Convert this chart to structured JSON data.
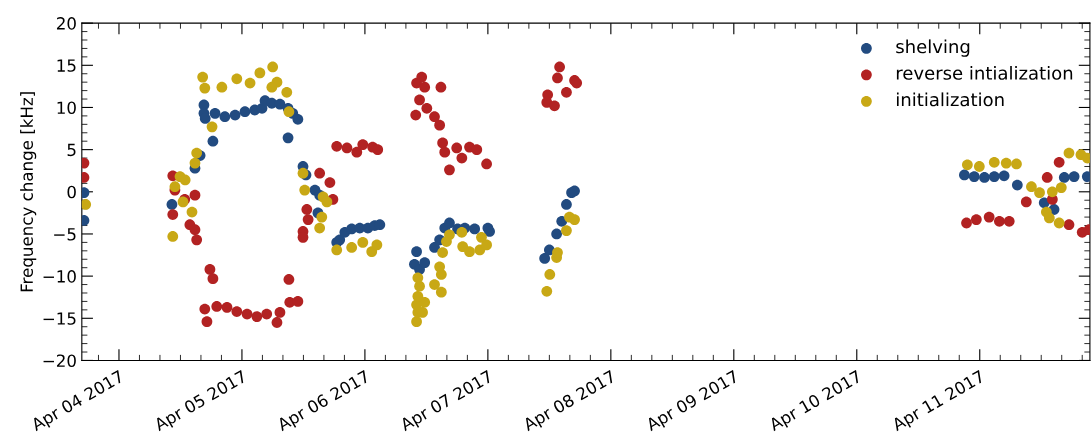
{
  "chart_data": {
    "type": "scatter",
    "ylabel": "Frequency change [kHz]",
    "xlim": [
      "2017-04-03T16:45",
      "2017-04-11T21:30"
    ],
    "ylim": [
      -20,
      20
    ],
    "yticks": [
      -20,
      -15,
      -10,
      -5,
      0,
      5,
      10,
      15,
      20
    ],
    "xticks": [
      {
        "value": "2017-04-04",
        "label": "Apr 04 2017"
      },
      {
        "value": "2017-04-05",
        "label": "Apr 05 2017"
      },
      {
        "value": "2017-04-06",
        "label": "Apr 06 2017"
      },
      {
        "value": "2017-04-07",
        "label": "Apr 07 2017"
      },
      {
        "value": "2017-04-08",
        "label": "Apr 08 2017"
      },
      {
        "value": "2017-04-09",
        "label": "Apr 09 2017"
      },
      {
        "value": "2017-04-10",
        "label": "Apr 10 2017"
      },
      {
        "value": "2017-04-11",
        "label": "Apr 11 2017"
      }
    ],
    "legend": "top right",
    "marker": "circle",
    "grid": false,
    "series": [
      {
        "name": "shelving",
        "color": "#224b80",
        "x": [
          "2017-04-03T17:10",
          "2017-04-03T17:10",
          "2017-04-04T10:20",
          "2017-04-04T14:50",
          "2017-04-04T15:50",
          "2017-04-04T18:20",
          "2017-04-04T16:35",
          "2017-04-04T16:35",
          "2017-04-04T16:50",
          "2017-04-04T18:45",
          "2017-04-04T20:40",
          "2017-04-04T22:40",
          "2017-04-05T00:35",
          "2017-04-05T02:30",
          "2017-04-05T03:55",
          "2017-04-05T04:30",
          "2017-04-05T05:50",
          "2017-04-05T07:25",
          "2017-04-05T09:00",
          "2017-04-05T09:55",
          "2017-04-05T10:55",
          "2017-04-05T09:00",
          "2017-04-05T11:55",
          "2017-04-05T12:30",
          "2017-04-05T14:15",
          "2017-04-05T15:10",
          "2017-04-05T14:50",
          "2017-04-05T18:30",
          "2017-04-05T19:05",
          "2017-04-05T20:05",
          "2017-04-05T21:25",
          "2017-04-05T23:00",
          "2017-04-06T00:35",
          "2017-04-06T01:55",
          "2017-04-06T02:55",
          "2017-04-06T10:05",
          "2017-04-06T09:40",
          "2017-04-06T10:40",
          "2017-04-06T11:40",
          "2017-04-06T13:35",
          "2017-04-06T14:35",
          "2017-04-06T15:35",
          "2017-04-06T16:30",
          "2017-04-06T18:05",
          "2017-04-06T19:30",
          "2017-04-06T21:25",
          "2017-04-07T00:00",
          "2017-04-07T00:20",
          "2017-04-07T11:05",
          "2017-04-07T12:00",
          "2017-04-07T13:25",
          "2017-04-07T14:25",
          "2017-04-07T15:20",
          "2017-04-07T16:20",
          "2017-04-07T16:55",
          "2017-04-10T21:00",
          "2017-04-10T22:55",
          "2017-04-11T00:55",
          "2017-04-11T02:50",
          "2017-04-11T04:45",
          "2017-04-11T07:20",
          "2017-04-11T12:35",
          "2017-04-11T14:30",
          "2017-04-11T16:30",
          "2017-04-11T18:25",
          "2017-04-11T21:00"
        ],
        "values": [
          -0.1,
          -3.4,
          -1.5,
          2.8,
          4.3,
          6.0,
          10.3,
          9.3,
          8.7,
          9.3,
          8.9,
          9.1,
          9.5,
          9.7,
          9.9,
          10.8,
          10.5,
          10.4,
          9.9,
          9.3,
          8.6,
          6.4,
          3.0,
          2.0,
          0.2,
          -0.4,
          -2.5,
          -6.0,
          -5.7,
          -4.8,
          -4.4,
          -4.3,
          -4.3,
          -4.0,
          -3.9,
          -7.1,
          -8.6,
          -9.2,
          -8.4,
          -6.6,
          -5.7,
          -4.3,
          -3.7,
          -4.4,
          -4.3,
          -4.4,
          -4.3,
          -4.7,
          -7.9,
          -6.9,
          -5.0,
          -3.5,
          -1.5,
          -0.1,
          0.1,
          2.0,
          1.8,
          1.7,
          1.8,
          1.9,
          0.8,
          -1.3,
          -2.1,
          1.7,
          1.8,
          1.8
        ]
      },
      {
        "name": "reverse intialization",
        "color": "#b22222",
        "x": [
          "2017-04-03T17:10",
          "2017-04-03T17:10",
          "2017-04-04T10:30",
          "2017-04-04T10:55",
          "2017-04-04T10:30",
          "2017-04-04T12:50",
          "2017-04-04T13:50",
          "2017-04-04T14:50",
          "2017-04-04T14:50",
          "2017-04-04T15:10",
          "2017-04-04T17:45",
          "2017-04-04T18:20",
          "2017-04-04T16:45",
          "2017-04-04T17:10",
          "2017-04-04T19:05",
          "2017-04-04T21:05",
          "2017-04-04T23:00",
          "2017-04-05T01:00",
          "2017-04-05T02:55",
          "2017-04-05T04:50",
          "2017-04-05T06:50",
          "2017-04-05T07:25",
          "2017-04-05T09:20",
          "2017-04-05T10:55",
          "2017-04-05T09:10",
          "2017-04-05T11:55",
          "2017-04-05T11:55",
          "2017-04-05T12:40",
          "2017-04-05T12:55",
          "2017-04-05T15:10",
          "2017-04-05T17:10",
          "2017-04-05T17:45",
          "2017-04-05T18:30",
          "2017-04-05T20:30",
          "2017-04-05T22:25",
          "2017-04-05T23:35",
          "2017-04-06T01:30",
          "2017-04-06T02:30",
          "2017-04-06T09:55",
          "2017-04-06T10:05",
          "2017-04-06T10:40",
          "2017-04-06T11:05",
          "2017-04-06T11:40",
          "2017-04-06T12:05",
          "2017-04-06T13:35",
          "2017-04-06T14:35",
          "2017-04-06T14:50",
          "2017-04-06T15:10",
          "2017-04-06T15:35",
          "2017-04-06T16:30",
          "2017-04-06T17:55",
          "2017-04-06T18:55",
          "2017-04-06T20:25",
          "2017-04-06T21:50",
          "2017-04-06T23:45",
          "2017-04-07T14:00",
          "2017-04-07T13:35",
          "2017-04-07T16:55",
          "2017-04-07T17:20",
          "2017-04-07T15:20",
          "2017-04-07T11:40",
          "2017-04-07T11:30",
          "2017-04-07T13:00",
          "2017-04-10T21:25",
          "2017-04-10T23:20",
          "2017-04-11T01:50",
          "2017-04-11T03:50",
          "2017-04-11T05:45",
          "2017-04-11T15:30",
          "2017-04-11T13:10",
          "2017-04-11T09:05",
          "2017-04-11T14:10",
          "2017-04-11T17:25",
          "2017-04-11T20:00",
          "2017-04-11T21:20"
        ],
        "values": [
          3.4,
          1.7,
          1.9,
          0.2,
          -2.7,
          -0.9,
          -3.9,
          -0.4,
          -4.5,
          -5.7,
          -9.2,
          -10.3,
          -13.9,
          -15.4,
          -13.6,
          -13.7,
          -14.2,
          -14.5,
          -14.8,
          -14.5,
          -15.5,
          -14.3,
          -13.1,
          -13.0,
          -10.4,
          -4.7,
          -5.4,
          -2.1,
          -3.3,
          2.2,
          1.1,
          -0.9,
          5.4,
          5.2,
          4.7,
          5.6,
          5.3,
          5.0,
          9.1,
          12.9,
          10.9,
          13.6,
          12.4,
          9.9,
          8.9,
          7.9,
          12.4,
          5.8,
          4.7,
          2.6,
          5.2,
          4.0,
          5.3,
          5.0,
          3.3,
          14.8,
          13.5,
          13.2,
          12.9,
          11.8,
          11.5,
          10.6,
          10.2,
          -3.7,
          -3.3,
          -3.0,
          -3.5,
          -3.5,
          3.5,
          1.7,
          -1.2,
          -0.9,
          -3.9,
          -4.8,
          -4.5
        ]
      },
      {
        "name": "initialization",
        "color": "#c8a815",
        "x": [
          "2017-04-03T17:30",
          "2017-04-04T10:30",
          "2017-04-04T10:55",
          "2017-04-04T11:55",
          "2017-04-04T12:55",
          "2017-04-04T12:30",
          "2017-04-04T14:15",
          "2017-04-04T14:50",
          "2017-04-04T15:10",
          "2017-04-04T18:10",
          "2017-04-04T16:20",
          "2017-04-04T16:45",
          "2017-04-04T20:05",
          "2017-04-04T23:00",
          "2017-04-05T01:35",
          "2017-04-05T03:30",
          "2017-04-05T06:00",
          "2017-04-05T06:50",
          "2017-04-05T05:50",
          "2017-04-05T08:45",
          "2017-04-05T09:10",
          "2017-04-05T11:55",
          "2017-04-05T12:15",
          "2017-04-05T15:50",
          "2017-04-05T16:35",
          "2017-04-05T15:35",
          "2017-04-05T15:10",
          "2017-04-05T18:30",
          "2017-04-05T21:25",
          "2017-04-05T23:35",
          "2017-04-06T01:20",
          "2017-04-06T02:20",
          "2017-04-06T10:05",
          "2017-04-06T10:20",
          "2017-04-06T11:15",
          "2017-04-06T10:05",
          "2017-04-06T11:40",
          "2017-04-06T10:20",
          "2017-04-06T10:40",
          "2017-04-06T10:20",
          "2017-04-06T13:35",
          "2017-04-06T14:55",
          "2017-04-06T14:55",
          "2017-04-06T14:35",
          "2017-04-06T15:10",
          "2017-04-06T15:55",
          "2017-04-06T16:30",
          "2017-04-06T18:55",
          "2017-04-06T19:05",
          "2017-04-06T20:25",
          "2017-04-06T22:25",
          "2017-04-06T22:45",
          "2017-04-06T23:45",
          "2017-04-07T11:30",
          "2017-04-07T12:05",
          "2017-04-07T13:25",
          "2017-04-07T13:35",
          "2017-04-07T15:20",
          "2017-04-07T15:55",
          "2017-04-07T16:55",
          "2017-04-10T21:35",
          "2017-04-10T23:55",
          "2017-04-11T02:50",
          "2017-04-11T05:10",
          "2017-04-11T07:10",
          "2017-04-11T10:05",
          "2017-04-11T11:40",
          "2017-04-11T13:00",
          "2017-04-11T13:35",
          "2017-04-11T14:10",
          "2017-04-11T15:55",
          "2017-04-11T15:30",
          "2017-04-11T17:25",
          "2017-04-11T19:45",
          "2017-04-11T21:00"
        ],
        "values": [
          -1.5,
          -5.3,
          0.6,
          1.8,
          1.4,
          -1.2,
          -2.4,
          3.4,
          4.6,
          7.7,
          13.6,
          12.3,
          12.4,
          13.4,
          12.9,
          14.1,
          14.8,
          13.0,
          12.4,
          11.8,
          9.5,
          2.2,
          0.2,
          -0.6,
          -1.2,
          -3.0,
          -4.3,
          -6.9,
          -6.6,
          -6.0,
          -7.1,
          -6.3,
          -15.4,
          -14.3,
          -14.3,
          -13.4,
          -13.1,
          -12.4,
          -11.2,
          -10.2,
          -11.0,
          -11.9,
          -9.8,
          -8.9,
          -7.2,
          -5.9,
          -5.1,
          -4.8,
          -6.5,
          -7.1,
          -6.9,
          -5.4,
          -6.3,
          -11.8,
          -9.8,
          -7.8,
          -7.2,
          -4.6,
          -3.0,
          -3.3,
          3.2,
          3.0,
          3.5,
          3.4,
          3.3,
          0.6,
          -0.1,
          -2.4,
          -3.1,
          0.0,
          0.5,
          -3.7,
          4.6,
          4.4,
          4.0
        ]
      }
    ]
  }
}
